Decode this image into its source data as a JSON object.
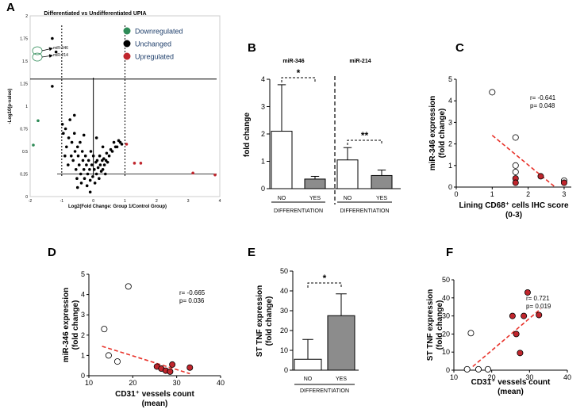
{
  "colors": {
    "white_bar": "#ffffff",
    "gray_bar": "#8c8c8c",
    "red_point": "#c0262d",
    "green_point": "#2e8b57",
    "black_point": "#000000",
    "open_point": "#ffffff",
    "trendline": "#e8322a",
    "legend_text": "#1f3f6b"
  },
  "chart_data": [
    {
      "panel": "A",
      "type": "scatter",
      "title": "Differentiated vs Undifferentiated UPIA",
      "xlabel": "Log2(Fold Change: Group 1/Control Group)",
      "ylabel": "-Log10(p-value)",
      "xlim": [
        -2,
        4
      ],
      "ylim": [
        0,
        2
      ],
      "xticks": [
        "-2",
        "-1",
        "0",
        "1",
        "2",
        "3",
        "4"
      ],
      "yticks": [
        "0",
        "0.25",
        "0.5",
        "0.75",
        "1",
        "1.25",
        "1.5",
        "1.75",
        "2"
      ],
      "legend": [
        {
          "label": "Downregulated",
          "color": "#2e8b57"
        },
        {
          "label": "Unchanged",
          "color": "#000000"
        },
        {
          "label": "Upregulated",
          "color": "#c0262d"
        }
      ],
      "annotations": [
        "miR-346",
        "miR-214"
      ],
      "threshold_x": [
        -1,
        1
      ],
      "threshold_y": 1.3,
      "center_x": 0,
      "series": [
        {
          "name": "Downregulated",
          "x": [
            -1.9,
            -1.75
          ],
          "y": [
            0.57,
            0.84
          ]
        },
        {
          "name": "Upregulated",
          "x": [
            1.05,
            1.3,
            1.5,
            3.15,
            3.85
          ],
          "y": [
            0.58,
            0.37,
            0.37,
            0.26,
            0.24
          ]
        },
        {
          "name": "Unchanged",
          "x": [
            -1.3,
            -1.3,
            -1.18,
            -0.98,
            -0.95,
            -0.9,
            -0.88,
            -0.85,
            -0.8,
            -0.78,
            -0.74,
            -0.7,
            -0.68,
            -0.64,
            -0.6,
            -0.58,
            -0.55,
            -0.52,
            -0.5,
            -0.48,
            -0.45,
            -0.42,
            -0.4,
            -0.38,
            -0.35,
            -0.33,
            -0.3,
            -0.28,
            -0.25,
            -0.22,
            -0.2,
            -0.18,
            -0.15,
            -0.12,
            -0.1,
            -0.08,
            -0.05,
            -0.02,
            0.0,
            0.03,
            0.05,
            0.08,
            0.1,
            0.12,
            0.15,
            0.18,
            0.2,
            0.22,
            0.25,
            0.28,
            0.3,
            0.33,
            0.35,
            0.38,
            0.4,
            0.42,
            0.45,
            0.5,
            0.55,
            0.6,
            0.65,
            0.7,
            0.75,
            0.8,
            0.85,
            0.9,
            -0.6,
            -0.5,
            -0.3,
            -0.1,
            0.1,
            0.3
          ],
          "y": [
            1.22,
            1.75,
            1.6,
            0.8,
            0.7,
            0.45,
            0.75,
            0.55,
            0.35,
            0.65,
            0.85,
            0.45,
            0.6,
            0.4,
            0.7,
            0.5,
            0.3,
            0.2,
            0.55,
            0.45,
            0.35,
            0.6,
            0.25,
            0.15,
            0.5,
            0.4,
            0.3,
            0.2,
            0.45,
            0.35,
            0.12,
            0.25,
            0.4,
            0.3,
            0.18,
            0.5,
            0.35,
            0.22,
            0.45,
            0.3,
            0.15,
            0.38,
            0.25,
            0.4,
            0.32,
            0.2,
            0.45,
            0.35,
            0.28,
            0.4,
            0.3,
            0.42,
            0.35,
            0.25,
            0.4,
            0.48,
            0.38,
            0.45,
            0.52,
            0.5,
            0.6,
            0.55,
            0.55,
            0.62,
            0.6,
            0.58,
            0.9,
            0.1,
            0.68,
            0.05,
            0.65,
            0.55
          ]
        }
      ]
    },
    {
      "panel": "B",
      "type": "bar",
      "ylabel": "fold change",
      "ylim": [
        0,
        4
      ],
      "yticks": [
        "0",
        "1",
        "2",
        "3",
        "4"
      ],
      "groups": [
        {
          "title": "miR-346",
          "categories": [
            "NO",
            "YES"
          ],
          "values": [
            2.1,
            0.35
          ],
          "errors": [
            1.7,
            0.1
          ],
          "significance": "*",
          "group_label": "DIFFERENTIATION"
        },
        {
          "title": "miR-214",
          "categories": [
            "NO",
            "YES"
          ],
          "values": [
            1.05,
            0.48
          ],
          "errors": [
            0.45,
            0.2
          ],
          "significance": "**",
          "group_label": "DIFFERENTIATION"
        }
      ]
    },
    {
      "panel": "C",
      "type": "scatter",
      "ylabel_lines": [
        "miR-346  expression",
        "(fold change)"
      ],
      "xlabel_lines": [
        "Lining CD68⁺ cells IHC score",
        "(0-3)"
      ],
      "xlim": [
        0,
        3.2
      ],
      "ylim": [
        0,
        5
      ],
      "xticks": [
        "0",
        "1",
        "2",
        "3"
      ],
      "yticks": [
        "0",
        "1",
        "2",
        "3",
        "4",
        "5"
      ],
      "stats": [
        "r= -0.641",
        "p= 0.048"
      ],
      "trendline": {
        "x": [
          1.0,
          2.75
        ],
        "y": [
          2.4,
          0.0
        ]
      },
      "points": [
        {
          "x": 1.0,
          "y": 4.4,
          "fill": "open"
        },
        {
          "x": 1.65,
          "y": 2.3,
          "fill": "open"
        },
        {
          "x": 1.65,
          "y": 1.0,
          "fill": "open"
        },
        {
          "x": 1.65,
          "y": 0.7,
          "fill": "open"
        },
        {
          "x": 1.65,
          "y": 0.4,
          "fill": "red"
        },
        {
          "x": 1.65,
          "y": 0.2,
          "fill": "red"
        },
        {
          "x": 2.35,
          "y": 0.5,
          "fill": "red"
        },
        {
          "x": 3.0,
          "y": 0.3,
          "fill": "open"
        },
        {
          "x": 3.0,
          "y": 0.2,
          "fill": "red"
        }
      ]
    },
    {
      "panel": "D",
      "type": "scatter",
      "ylabel_lines": [
        "miR-346  expression",
        "(fold change)"
      ],
      "xlabel_lines": [
        "CD31⁺ vessels count",
        "(mean)"
      ],
      "xlim": [
        10,
        40
      ],
      "ylim": [
        0,
        5
      ],
      "xticks": [
        "10",
        "20",
        "30",
        "40"
      ],
      "yticks": [
        "0",
        "1",
        "2",
        "3",
        "4",
        "5"
      ],
      "stats": [
        "r= -0.665",
        "p= 0.036"
      ],
      "trendline": {
        "x": [
          13,
          33
        ],
        "y": [
          1.45,
          0.1
        ]
      },
      "points": [
        {
          "x": 19,
          "y": 4.4,
          "fill": "open"
        },
        {
          "x": 13.5,
          "y": 2.3,
          "fill": "open"
        },
        {
          "x": 14.5,
          "y": 1.0,
          "fill": "open"
        },
        {
          "x": 16.5,
          "y": 0.7,
          "fill": "open"
        },
        {
          "x": 25.5,
          "y": 0.45,
          "fill": "red"
        },
        {
          "x": 26.5,
          "y": 0.35,
          "fill": "red"
        },
        {
          "x": 27.5,
          "y": 0.25,
          "fill": "red"
        },
        {
          "x": 28.5,
          "y": 0.2,
          "fill": "red"
        },
        {
          "x": 29,
          "y": 0.55,
          "fill": "red"
        },
        {
          "x": 33,
          "y": 0.4,
          "fill": "red"
        }
      ]
    },
    {
      "panel": "E",
      "type": "bar",
      "ylabel_lines": [
        "ST TNF expression",
        "(fold change)"
      ],
      "ylim": [
        0,
        50
      ],
      "yticks": [
        "0",
        "10",
        "20",
        "30",
        "40",
        "50"
      ],
      "categories": [
        "NO",
        "YES"
      ],
      "values": [
        5.5,
        27.5
      ],
      "errors": [
        10,
        11
      ],
      "significance": "*",
      "group_label": "DIFFERENTIATION"
    },
    {
      "panel": "F",
      "type": "scatter",
      "ylabel_lines": [
        "ST TNF expression",
        "(fold change)"
      ],
      "xlabel_lines": [
        "CD31⁺ vessels count",
        "(mean)"
      ],
      "xlim": [
        10,
        40
      ],
      "ylim": [
        0,
        50
      ],
      "xticks": [
        "10",
        "20",
        "30",
        "40"
      ],
      "yticks": [
        "0",
        "10",
        "20",
        "30",
        "40",
        "50"
      ],
      "stats": [
        "r= 0.721",
        "p= 0.019"
      ],
      "trendline": {
        "x": [
          15,
          33
        ],
        "y": [
          2,
          34
        ]
      },
      "points": [
        {
          "x": 13.5,
          "y": 0.5,
          "fill": "open"
        },
        {
          "x": 14.5,
          "y": 20.5,
          "fill": "open"
        },
        {
          "x": 16.5,
          "y": 0.5,
          "fill": "open"
        },
        {
          "x": 19,
          "y": 0.5,
          "fill": "open"
        },
        {
          "x": 25.5,
          "y": 30,
          "fill": "red"
        },
        {
          "x": 26.5,
          "y": 20,
          "fill": "red"
        },
        {
          "x": 27.5,
          "y": 9.5,
          "fill": "red"
        },
        {
          "x": 28.5,
          "y": 30,
          "fill": "red"
        },
        {
          "x": 29.5,
          "y": 43,
          "fill": "red"
        },
        {
          "x": 32.5,
          "y": 30.5,
          "fill": "red"
        }
      ]
    }
  ]
}
